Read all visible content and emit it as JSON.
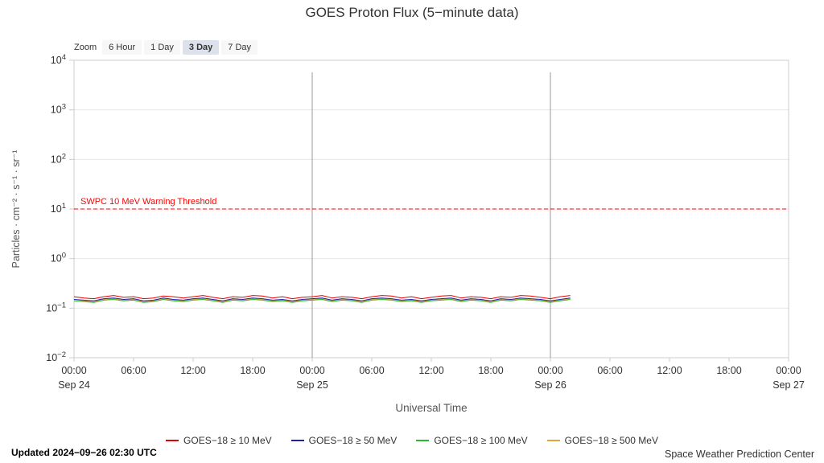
{
  "page": {
    "title": "GOES Proton Flux (5−minute data)",
    "updated": "Updated 2024−09−26 02:30 UTC",
    "credit": "Space Weather Prediction Center"
  },
  "zoom": {
    "label": "Zoom",
    "options": [
      {
        "label": "6 Hour",
        "selected": false
      },
      {
        "label": "1 Day",
        "selected": false
      },
      {
        "label": "3 Day",
        "selected": true
      },
      {
        "label": "7 Day",
        "selected": false
      }
    ]
  },
  "chart_data": {
    "type": "line",
    "title": "GOES Proton Flux (5−minute data)",
    "xlabel": "Universal Time",
    "ylabel": "Particles · cm⁻² · s⁻¹ · sr⁻¹",
    "y_scale": "log",
    "ylim": [
      0.01,
      10000
    ],
    "y_tick_exponents": [
      -2,
      -1,
      0,
      1,
      2,
      3,
      4
    ],
    "x_range_hours": [
      0,
      72
    ],
    "x_tick_interval_hours": 6,
    "x_tick_labels": [
      "00:00",
      "06:00",
      "12:00",
      "18:00",
      "00:00",
      "06:00",
      "12:00",
      "18:00",
      "00:00",
      "06:00",
      "12:00",
      "18:00",
      "00:00"
    ],
    "x_date_labels": [
      {
        "hour": 0,
        "label": "Sep 24"
      },
      {
        "hour": 24,
        "label": "Sep 25"
      },
      {
        "hour": 48,
        "label": "Sep 26"
      },
      {
        "hour": 72,
        "label": "Sep 27"
      }
    ],
    "day_boundaries_hours": [
      24,
      48
    ],
    "grid": true,
    "legend_position": "bottom",
    "threshold": {
      "label": "SWPC 10 MeV Warning Threshold",
      "value": 10,
      "color": "#ff0000"
    },
    "x_start_hour": 0,
    "x_step_hours": 1,
    "series": [
      {
        "name": "GOES−18 ≥ 10 MeV",
        "color": "#e60000",
        "values": [
          0.17,
          0.16,
          0.155,
          0.17,
          0.18,
          0.165,
          0.17,
          0.155,
          0.16,
          0.175,
          0.17,
          0.16,
          0.17,
          0.18,
          0.165,
          0.155,
          0.17,
          0.165,
          0.18,
          0.175,
          0.16,
          0.17,
          0.155,
          0.165,
          0.17,
          0.18,
          0.16,
          0.17,
          0.165,
          0.155,
          0.17,
          0.18,
          0.175,
          0.16,
          0.17,
          0.155,
          0.165,
          0.175,
          0.18,
          0.16,
          0.17,
          0.165,
          0.155,
          0.17,
          0.165,
          0.18,
          0.175,
          0.165,
          0.155,
          0.17,
          0.18
        ]
      },
      {
        "name": "GOES−18 ≥ 50 MeV",
        "color": "#2020b0",
        "values": [
          0.15,
          0.145,
          0.14,
          0.155,
          0.16,
          0.15,
          0.155,
          0.14,
          0.145,
          0.16,
          0.15,
          0.145,
          0.155,
          0.16,
          0.15,
          0.14,
          0.155,
          0.15,
          0.16,
          0.155,
          0.145,
          0.15,
          0.14,
          0.15,
          0.155,
          0.16,
          0.145,
          0.155,
          0.15,
          0.14,
          0.155,
          0.16,
          0.155,
          0.145,
          0.15,
          0.14,
          0.15,
          0.155,
          0.16,
          0.145,
          0.155,
          0.15,
          0.14,
          0.155,
          0.15,
          0.16,
          0.155,
          0.15,
          0.14,
          0.15,
          0.16
        ]
      },
      {
        "name": "GOES−18 ≥ 100 MeV",
        "color": "#2eb82e",
        "values": [
          0.14,
          0.135,
          0.13,
          0.145,
          0.15,
          0.14,
          0.145,
          0.13,
          0.135,
          0.15,
          0.14,
          0.135,
          0.145,
          0.15,
          0.14,
          0.13,
          0.145,
          0.14,
          0.15,
          0.145,
          0.135,
          0.14,
          0.13,
          0.14,
          0.145,
          0.15,
          0.135,
          0.145,
          0.14,
          0.13,
          0.145,
          0.15,
          0.145,
          0.135,
          0.14,
          0.13,
          0.14,
          0.145,
          0.15,
          0.135,
          0.145,
          0.14,
          0.13,
          0.145,
          0.14,
          0.15,
          0.145,
          0.14,
          0.13,
          0.14,
          0.15
        ]
      },
      {
        "name": "GOES−18 ≥ 500 MeV",
        "color": "#e8a33d",
        "values": [
          0.15,
          0.14,
          0.135,
          0.15,
          0.155,
          0.145,
          0.15,
          0.135,
          0.14,
          0.155,
          0.145,
          0.14,
          0.15,
          0.155,
          0.145,
          0.135,
          0.15,
          0.145,
          0.155,
          0.15,
          0.14,
          0.145,
          0.135,
          0.145,
          0.15,
          0.155,
          0.14,
          0.15,
          0.145,
          0.135,
          0.15,
          0.155,
          0.15,
          0.14,
          0.145,
          0.135,
          0.145,
          0.15,
          0.155,
          0.14,
          0.15,
          0.145,
          0.135,
          0.15,
          0.145,
          0.155,
          0.15,
          0.145,
          0.135,
          0.145,
          0.155
        ]
      }
    ]
  }
}
